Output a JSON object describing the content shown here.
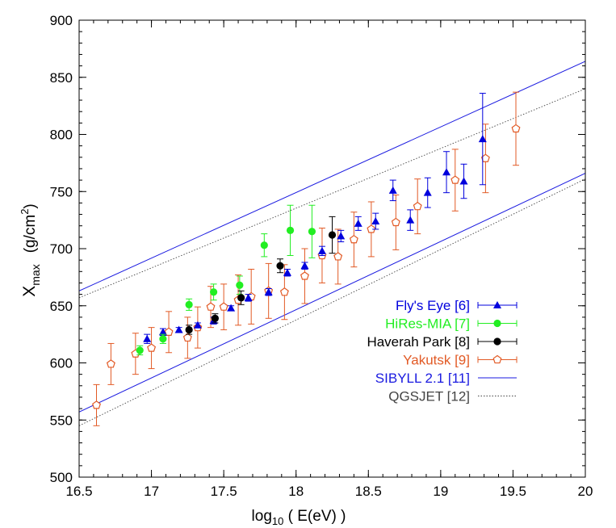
{
  "chart_data": {
    "type": "scatter",
    "xlabel": {
      "pre": "log",
      "sub": "10",
      "post": " ( E(eV) )"
    },
    "ylabel": {
      "main": "X",
      "sub": "max",
      "units": "(g/cm",
      "sup": "2",
      "close": ")"
    },
    "xlim": [
      16.5,
      20
    ],
    "ylim": [
      500,
      900
    ],
    "x_ticks": [
      "16.5",
      "17",
      "17.5",
      "18",
      "18.5",
      "19",
      "19.5",
      "20"
    ],
    "y_ticks": [
      "500",
      "550",
      "600",
      "650",
      "700",
      "750",
      "800",
      "850",
      "900"
    ],
    "grid": false,
    "legend_position": "lower-right",
    "series": [
      {
        "name": "Fly's Eye [6]",
        "color": "#0000dd",
        "marker": "triangle",
        "points": [
          {
            "x": 16.97,
            "y": 621,
            "err": 4
          },
          {
            "x": 17.08,
            "y": 627,
            "err": 3
          },
          {
            "x": 17.19,
            "y": 629,
            "err": 2
          },
          {
            "x": 17.32,
            "y": 633,
            "err": 2
          },
          {
            "x": 17.43,
            "y": 637,
            "err": 3
          },
          {
            "x": 17.55,
            "y": 648,
            "err": 2
          },
          {
            "x": 17.67,
            "y": 657,
            "err": 3
          },
          {
            "x": 17.81,
            "y": 662,
            "err": 3
          },
          {
            "x": 17.94,
            "y": 679,
            "err": 3
          },
          {
            "x": 18.06,
            "y": 685,
            "err": 3
          },
          {
            "x": 18.18,
            "y": 698,
            "err": 4
          },
          {
            "x": 18.31,
            "y": 711,
            "err": 5
          },
          {
            "x": 18.43,
            "y": 722,
            "err": 6
          },
          {
            "x": 18.55,
            "y": 724,
            "err": 7
          },
          {
            "x": 18.67,
            "y": 751,
            "err": 9
          },
          {
            "x": 18.79,
            "y": 725,
            "err": 9
          },
          {
            "x": 18.91,
            "y": 749,
            "err": 13
          },
          {
            "x": 19.04,
            "y": 767,
            "err": 18
          },
          {
            "x": 19.16,
            "y": 759,
            "err": 15
          },
          {
            "x": 19.29,
            "y": 796,
            "err": 40
          }
        ]
      },
      {
        "name": "HiRes-MIA [7]",
        "color": "#22ee22",
        "marker": "circle",
        "points": [
          {
            "x": 16.92,
            "y": 611,
            "err": 4
          },
          {
            "x": 17.08,
            "y": 621,
            "err": 4
          },
          {
            "x": 17.26,
            "y": 651,
            "err": 5
          },
          {
            "x": 17.43,
            "y": 662,
            "err": 7
          },
          {
            "x": 17.61,
            "y": 668,
            "err": 8
          },
          {
            "x": 17.78,
            "y": 703,
            "err": 10
          },
          {
            "x": 17.96,
            "y": 716,
            "err": 22
          },
          {
            "x": 18.11,
            "y": 715,
            "err": 23
          }
        ]
      },
      {
        "name": "Haverah Park [8]",
        "color": "#000000",
        "marker": "circle",
        "points": [
          {
            "x": 17.26,
            "y": 629,
            "err": 4
          },
          {
            "x": 17.44,
            "y": 639,
            "err": 4
          },
          {
            "x": 17.62,
            "y": 657,
            "err": 6
          },
          {
            "x": 17.89,
            "y": 685,
            "err": 6
          },
          {
            "x": 18.25,
            "y": 712,
            "err": 16
          }
        ]
      },
      {
        "name": "Yakutsk [9]",
        "color": "#e25a25",
        "marker": "pentagon-open",
        "points": [
          {
            "x": 16.62,
            "y": 563,
            "err": 18
          },
          {
            "x": 16.72,
            "y": 599,
            "err": 18
          },
          {
            "x": 16.89,
            "y": 608,
            "err": 18
          },
          {
            "x": 17.0,
            "y": 613,
            "err": 18
          },
          {
            "x": 17.12,
            "y": 627,
            "err": 18
          },
          {
            "x": 17.25,
            "y": 622,
            "err": 18
          },
          {
            "x": 17.32,
            "y": 631,
            "err": 18
          },
          {
            "x": 17.41,
            "y": 649,
            "err": 18
          },
          {
            "x": 17.5,
            "y": 649,
            "err": 20
          },
          {
            "x": 17.6,
            "y": 655,
            "err": 22
          },
          {
            "x": 17.69,
            "y": 658,
            "err": 24
          },
          {
            "x": 17.81,
            "y": 663,
            "err": 24
          },
          {
            "x": 17.92,
            "y": 662,
            "err": 24
          },
          {
            "x": 18.06,
            "y": 676,
            "err": 24
          },
          {
            "x": 18.18,
            "y": 694,
            "err": 24
          },
          {
            "x": 18.29,
            "y": 693,
            "err": 24
          },
          {
            "x": 18.4,
            "y": 708,
            "err": 24
          },
          {
            "x": 18.52,
            "y": 717,
            "err": 24
          },
          {
            "x": 18.69,
            "y": 723,
            "err": 24
          },
          {
            "x": 18.84,
            "y": 737,
            "err": 24
          },
          {
            "x": 19.1,
            "y": 760,
            "err": 27
          },
          {
            "x": 19.31,
            "y": 779,
            "err": 30
          },
          {
            "x": 19.52,
            "y": 805,
            "err": 32
          }
        ]
      },
      {
        "name": "SIBYLL 2.1 [11]",
        "color": "#1a1ae0",
        "marker": "line-solid",
        "lines": [
          {
            "x": [
              16.5,
              20
            ],
            "y": [
              663,
              864
            ]
          },
          {
            "x": [
              16.5,
              20
            ],
            "y": [
              557,
              766
            ]
          }
        ]
      },
      {
        "name": "QGSJET [12]",
        "color": "#444444",
        "marker": "line-dotted",
        "lines": [
          {
            "x": [
              16.5,
              20
            ],
            "y": [
              657,
              840
            ]
          },
          {
            "x": [
              16.5,
              20
            ],
            "y": [
              545,
              761
            ]
          }
        ]
      }
    ]
  }
}
